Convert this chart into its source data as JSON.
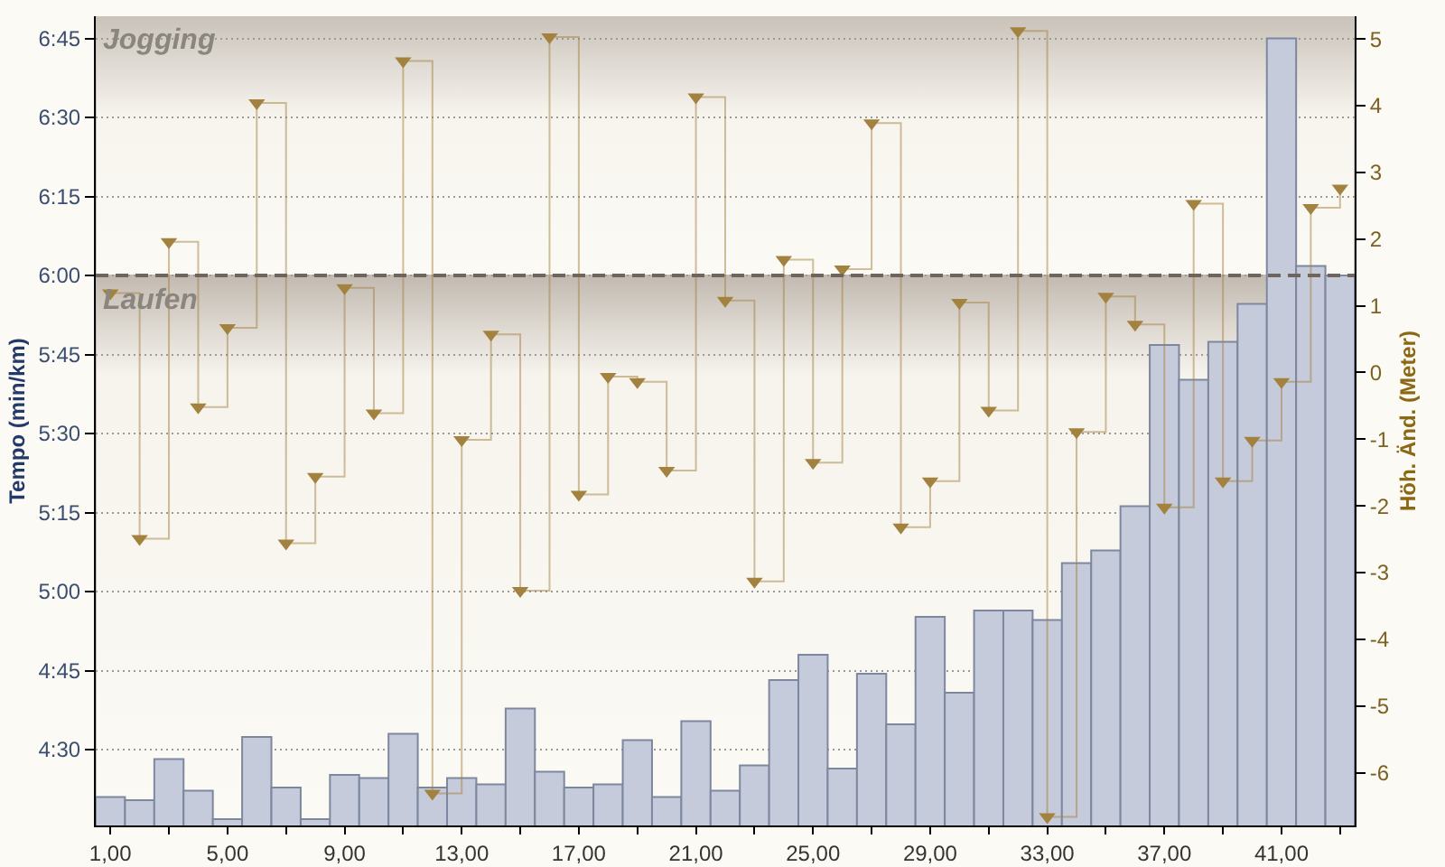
{
  "chart_data": {
    "type": "bar",
    "x": [
      1,
      2,
      3,
      4,
      5,
      6,
      7,
      8,
      9,
      10,
      11,
      12,
      13,
      14,
      15,
      16,
      17,
      18,
      19,
      20,
      21,
      22,
      23,
      24,
      25,
      26,
      27,
      28,
      29,
      30,
      31,
      32,
      33,
      34,
      35,
      36,
      37,
      38,
      39,
      40,
      41,
      42,
      43
    ],
    "ylabel": "Tempo (min/km)",
    "y2label": "Höh. Änd. (Meter)",
    "series": [
      {
        "color": "#c5cbda",
        "values": [
          4.35,
          4.34,
          4.47,
          4.37,
          4.28,
          4.54,
          4.38,
          4.28,
          4.42,
          4.41,
          4.55,
          4.38,
          4.41,
          4.39,
          4.63,
          4.43,
          4.38,
          4.39,
          4.53,
          4.35,
          4.59,
          4.37,
          4.45,
          4.72,
          4.8,
          4.44,
          4.74,
          4.58,
          4.92,
          4.68,
          4.94,
          4.94,
          4.91,
          5.09,
          5.13,
          5.27,
          5.78,
          5.67,
          5.79,
          5.91,
          6.75,
          6.03,
          6.0
        ]
      },
      {
        "type": "step",
        "axis": "y2",
        "color": "#a3823f",
        "marker": "triangle",
        "values": [
          1.19,
          -2.49,
          1.96,
          -0.52,
          0.67,
          4.04,
          -2.56,
          -1.56,
          1.27,
          -0.61,
          4.67,
          -6.31,
          -1.01,
          0.57,
          -3.27,
          5.03,
          -1.83,
          -0.06,
          -0.14,
          -1.47,
          4.13,
          1.08,
          -3.13,
          1.69,
          -1.35,
          1.55,
          3.74,
          -2.32,
          -1.63,
          1.05,
          -0.57,
          5.12,
          -6.66,
          -0.89,
          1.14,
          0.72,
          -2.02,
          2.53,
          -1.63,
          -1.02,
          -0.14,
          2.47,
          2.76
        ]
      }
    ],
    "xlim": [
      0.5,
      43.5
    ],
    "xticks": [
      {
        "value": 1,
        "label": "1,00"
      },
      {
        "value": 3,
        "label": null
      },
      {
        "value": 5,
        "label": "5,00"
      },
      {
        "value": 7,
        "label": null
      },
      {
        "value": 9,
        "label": "9,00"
      },
      {
        "value": 11,
        "label": null
      },
      {
        "value": 13,
        "label": "13,00"
      },
      {
        "value": 15,
        "label": null
      },
      {
        "value": 17,
        "label": "17,00"
      },
      {
        "value": 19,
        "label": null
      },
      {
        "value": 21,
        "label": "21,00"
      },
      {
        "value": 23,
        "label": null
      },
      {
        "value": 25,
        "label": "25,00"
      },
      {
        "value": 27,
        "label": null
      },
      {
        "value": 29,
        "label": "29,00"
      },
      {
        "value": 31,
        "label": null
      },
      {
        "value": 33,
        "label": "33,00"
      },
      {
        "value": 35,
        "label": null
      },
      {
        "value": 37,
        "label": "37,00"
      },
      {
        "value": 39,
        "label": null
      },
      {
        "value": 41,
        "label": "41,00"
      },
      {
        "value": 43,
        "label": null
      }
    ],
    "ylim": [
      4.26,
      6.82
    ],
    "yticks": [
      {
        "value": 4.5,
        "label": "4:30"
      },
      {
        "value": 4.75,
        "label": "4:45"
      },
      {
        "value": 5,
        "label": "5:00"
      },
      {
        "value": 5.25,
        "label": "5:15"
      },
      {
        "value": 5.5,
        "label": "5:30"
      },
      {
        "value": 5.75,
        "label": "5:45"
      },
      {
        "value": 6,
        "label": "6:00"
      },
      {
        "value": 6.25,
        "label": "6:15"
      },
      {
        "value": 6.5,
        "label": "6:30"
      },
      {
        "value": 6.75,
        "label": "6:45"
      }
    ],
    "y2lim": [
      -6.79,
      5.34
    ],
    "y2ticks": [
      -6,
      -5,
      -4,
      -3,
      -2,
      -1,
      0,
      1,
      2,
      3,
      4,
      5
    ],
    "grid": "y",
    "legend": false,
    "bands": [
      {
        "axis": "y",
        "from": 6.0,
        "to": 6.82,
        "label": "Jogging",
        "color": "#c9c2b9"
      },
      {
        "axis": "y",
        "from": 4.26,
        "to": 6.0,
        "label": "Laufen",
        "color": "#c2bab1"
      }
    ],
    "ref_lines": [
      {
        "axis": "y",
        "value": 6.0,
        "color": "#6f655c",
        "line_style": "dashed"
      }
    ]
  }
}
